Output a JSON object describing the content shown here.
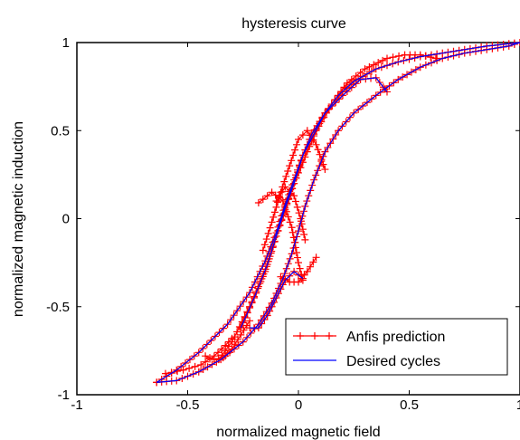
{
  "chart_data": {
    "type": "line",
    "title": "hysteresis curve",
    "xlabel": "normalized magnetic field",
    "ylabel": "normalized magnetic induction",
    "xlim": [
      -1,
      1
    ],
    "ylim": [
      -1,
      1
    ],
    "xticks": [
      "-1",
      "-0.5",
      "0",
      "0.5",
      "1"
    ],
    "yticks": [
      "-1",
      "-0.5",
      "0",
      "0.5",
      "1"
    ],
    "x_tick_values": [
      -1,
      -0.5,
      0,
      0.5,
      1
    ],
    "y_tick_values": [
      -1,
      -0.5,
      0,
      0.5,
      1
    ],
    "grid": false,
    "legend_position": "bottom-right",
    "series": [
      {
        "name": "Anfis prediction",
        "color": "#ff0000",
        "marker": "plus",
        "segments": [
          {
            "x": [
              -0.64,
              -0.55,
              -0.45,
              -0.35,
              -0.25,
              -0.18,
              -0.12,
              -0.07,
              -0.03,
              0.0,
              0.03,
              0.07,
              0.12,
              0.18,
              0.25,
              0.35,
              0.45,
              0.55,
              0.65,
              0.75,
              0.85,
              0.95,
              1.0
            ],
            "y": [
              -0.93,
              -0.92,
              -0.87,
              -0.8,
              -0.7,
              -0.6,
              -0.48,
              -0.34,
              -0.2,
              -0.07,
              0.07,
              0.22,
              0.38,
              0.5,
              0.6,
              0.7,
              0.79,
              0.86,
              0.91,
              0.94,
              0.96,
              0.98,
              1.0
            ]
          },
          {
            "x": [
              1.0,
              0.85,
              0.7,
              0.55,
              0.45,
              0.35,
              0.25,
              0.18,
              0.12,
              0.07,
              0.02,
              -0.02,
              -0.06,
              -0.1,
              -0.15,
              -0.22,
              -0.32,
              -0.45,
              -0.55,
              -0.64
            ],
            "y": [
              1.0,
              0.98,
              0.95,
              0.92,
              0.89,
              0.85,
              0.78,
              0.7,
              0.6,
              0.48,
              0.36,
              0.22,
              0.08,
              -0.08,
              -0.24,
              -0.42,
              -0.6,
              -0.76,
              -0.86,
              -0.93
            ]
          },
          {
            "x": [
              0.62,
              0.55,
              0.48,
              0.4,
              0.3,
              0.22,
              0.15,
              0.08,
              0.03,
              -0.02,
              -0.06,
              -0.1,
              -0.15,
              -0.22,
              -0.3,
              -0.36
            ],
            "y": [
              0.91,
              0.93,
              0.93,
              0.91,
              0.85,
              0.77,
              0.65,
              0.5,
              0.35,
              0.2,
              0.05,
              -0.1,
              -0.3,
              -0.5,
              -0.7,
              -0.8
            ]
          },
          {
            "x": [
              0.4,
              0.35,
              0.28,
              0.2,
              0.12,
              0.06,
              0.02,
              -0.02,
              -0.06,
              -0.1,
              -0.14,
              -0.2,
              -0.26
            ],
            "y": [
              0.72,
              0.8,
              0.79,
              0.7,
              0.6,
              0.48,
              0.36,
              0.2,
              0.06,
              -0.1,
              -0.26,
              -0.45,
              -0.62
            ]
          },
          {
            "x": [
              0.12,
              0.08,
              0.04,
              0.0,
              -0.04,
              -0.08,
              -0.12,
              -0.16
            ],
            "y": [
              0.28,
              0.42,
              0.5,
              0.45,
              0.3,
              0.15,
              -0.02,
              -0.18
            ]
          },
          {
            "x": [
              -0.1,
              -0.06,
              -0.02,
              0.01,
              0.03
            ],
            "y": [
              0.1,
              0.18,
              0.13,
              0.0,
              -0.12
            ]
          },
          {
            "x": [
              -0.18,
              -0.12,
              -0.07,
              -0.03,
              0.0,
              0.02
            ],
            "y": [
              0.09,
              0.15,
              0.1,
              -0.05,
              -0.25,
              -0.35
            ]
          },
          {
            "x": [
              -0.6,
              -0.52,
              -0.44,
              -0.38,
              -0.33,
              -0.3
            ],
            "y": [
              -0.88,
              -0.86,
              -0.83,
              -0.78,
              -0.72,
              -0.68
            ]
          },
          {
            "x": [
              -0.42,
              -0.38,
              -0.34,
              -0.3,
              -0.26,
              -0.22
            ],
            "y": [
              -0.78,
              -0.8,
              -0.79,
              -0.74,
              -0.66,
              -0.58
            ]
          },
          {
            "x": [
              -0.22,
              -0.18,
              -0.14,
              -0.1,
              -0.06,
              -0.02,
              0.02
            ],
            "y": [
              -0.62,
              -0.62,
              -0.55,
              -0.45,
              -0.35,
              -0.3,
              -0.34
            ]
          },
          {
            "x": [
              -0.08,
              -0.04,
              0.0,
              0.04,
              0.08
            ],
            "y": [
              -0.33,
              -0.36,
              -0.36,
              -0.3,
              -0.22
            ]
          }
        ]
      },
      {
        "name": "Desired cycles",
        "color": "#0000ff",
        "marker": "none",
        "segments": [
          {
            "x": [
              -0.64,
              -0.55,
              -0.45,
              -0.35,
              -0.25,
              -0.18,
              -0.12,
              -0.07,
              -0.03,
              0.0,
              0.03,
              0.07,
              0.12,
              0.18,
              0.25,
              0.35,
              0.45,
              0.55,
              0.65,
              0.75,
              0.85,
              0.95,
              1.0
            ],
            "y": [
              -0.93,
              -0.92,
              -0.87,
              -0.8,
              -0.7,
              -0.6,
              -0.48,
              -0.34,
              -0.2,
              -0.07,
              0.07,
              0.22,
              0.38,
              0.5,
              0.6,
              0.7,
              0.79,
              0.86,
              0.91,
              0.94,
              0.96,
              0.98,
              1.0
            ]
          },
          {
            "x": [
              1.0,
              0.85,
              0.7,
              0.55,
              0.45,
              0.35,
              0.25,
              0.18,
              0.12,
              0.07,
              0.02,
              -0.02,
              -0.06,
              -0.1,
              -0.15,
              -0.22,
              -0.32,
              -0.45,
              -0.55,
              -0.64
            ],
            "y": [
              1.0,
              0.98,
              0.95,
              0.92,
              0.89,
              0.85,
              0.78,
              0.7,
              0.6,
              0.48,
              0.36,
              0.22,
              0.08,
              -0.08,
              -0.24,
              -0.42,
              -0.6,
              -0.76,
              -0.86,
              -0.93
            ]
          },
          {
            "x": [
              0.4,
              0.35,
              0.28,
              0.2,
              0.12,
              0.06,
              0.02,
              -0.02,
              -0.06,
              -0.1,
              -0.14,
              -0.2,
              -0.26
            ],
            "y": [
              0.72,
              0.8,
              0.79,
              0.7,
              0.6,
              0.48,
              0.36,
              0.2,
              0.06,
              -0.1,
              -0.26,
              -0.45,
              -0.62
            ]
          },
          {
            "x": [
              -0.22,
              -0.18,
              -0.14,
              -0.1,
              -0.06,
              -0.02,
              0.02
            ],
            "y": [
              -0.62,
              -0.62,
              -0.55,
              -0.45,
              -0.35,
              -0.3,
              -0.34
            ]
          }
        ]
      }
    ]
  }
}
